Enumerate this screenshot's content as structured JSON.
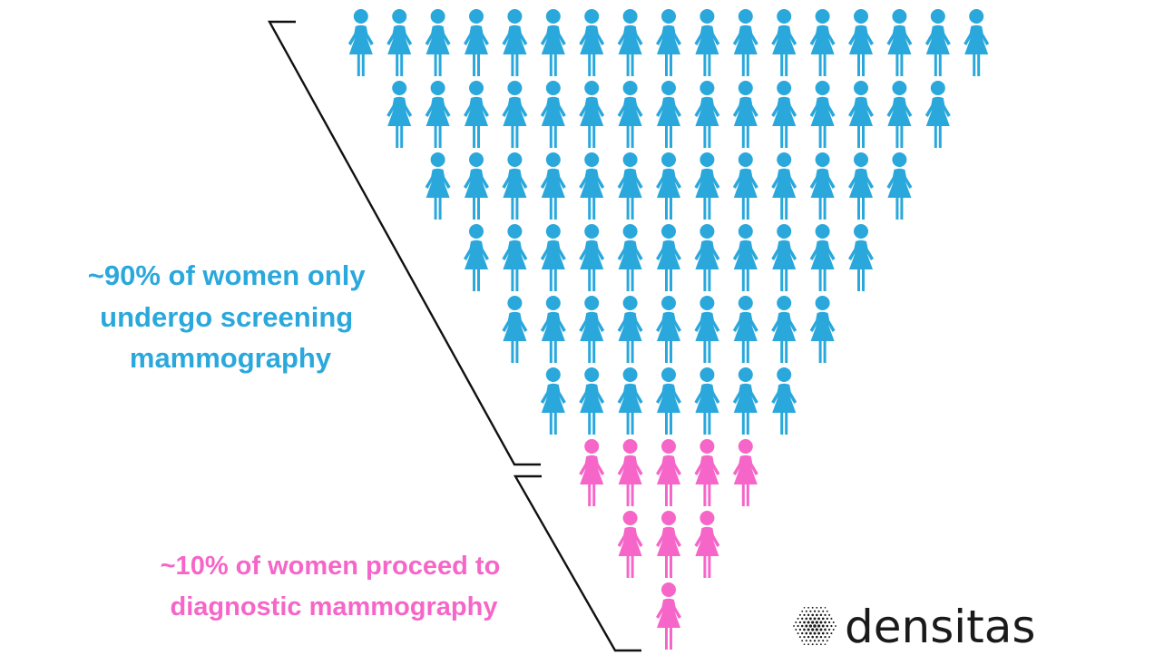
{
  "groups": [
    {
      "id": "screening",
      "color": "#2aa8dc",
      "rows": [
        17,
        15,
        13,
        11,
        9,
        7
      ],
      "label_lines": [
        "~90% of women only",
        "undergo screening",
        "mammography"
      ]
    },
    {
      "id": "diagnostic",
      "color": "#f566c8",
      "rows": [
        5,
        3,
        1
      ],
      "label_lines": [
        "~10% of women proceed to",
        "diagnostic mammography"
      ]
    }
  ],
  "bracket_color": "#111111",
  "logo": {
    "text": "densitas",
    "icon": "dot-grid-logo-icon",
    "color": "#1a1a1a"
  }
}
